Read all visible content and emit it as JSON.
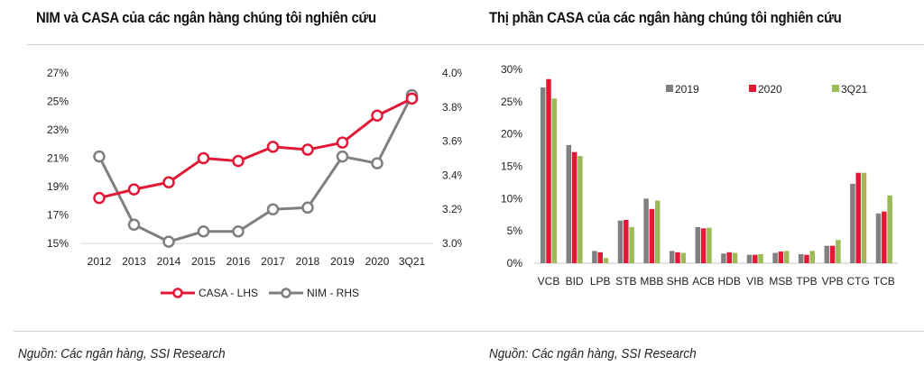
{
  "left": {
    "title": "NIM và CASA của các ngân hàng chúng tôi nghiên cứu",
    "source": "Nguồn: Các ngân hàng, SSI Research"
  },
  "right": {
    "title": "Thị phần CASA của các ngân hàng chúng tôi nghiên cứu",
    "source": "Nguồn: Các ngân hàng, SSI Research"
  },
  "chart_data": [
    {
      "type": "line",
      "title": "NIM và CASA của các ngân hàng chúng tôi nghiên cứu",
      "x": [
        "2012",
        "2013",
        "2014",
        "2015",
        "2016",
        "2017",
        "2018",
        "2019",
        "2020",
        "3Q21"
      ],
      "series": [
        {
          "name": "CASA - LHS",
          "axis": "left",
          "color": "#e31837",
          "values": [
            18.2,
            18.8,
            19.3,
            21.0,
            20.8,
            21.8,
            21.6,
            22.1,
            24.0,
            25.2
          ]
        },
        {
          "name": "NIM - RHS",
          "axis": "right",
          "color": "#7f7f7f",
          "values": [
            3.51,
            3.11,
            3.01,
            3.07,
            3.07,
            3.2,
            3.21,
            3.51,
            3.47,
            3.87
          ]
        }
      ],
      "y_left": {
        "ticks": [
          "15%",
          "17%",
          "19%",
          "21%",
          "23%",
          "25%",
          "27%"
        ],
        "range": [
          15,
          27
        ]
      },
      "y_right": {
        "ticks": [
          "3.0%",
          "3.2%",
          "3.4%",
          "3.6%",
          "3.8%",
          "4.0%"
        ],
        "range": [
          3.0,
          4.0
        ]
      },
      "legend": [
        "CASA - LHS",
        "NIM - RHS"
      ],
      "legend_position": "bottom",
      "grid": false
    },
    {
      "type": "bar",
      "title": "Thị phần CASA của các ngân hàng chúng tôi nghiên cứu",
      "categories": [
        "VCB",
        "BID",
        "LPB",
        "STB",
        "MBB",
        "SHB",
        "ACB",
        "HDB",
        "VIB",
        "MSB",
        "TPB",
        "VPB",
        "CTG",
        "TCB"
      ],
      "series": [
        {
          "name": "2019",
          "color": "#808080",
          "values": [
            27.2,
            18.3,
            1.9,
            6.6,
            10.0,
            1.9,
            5.6,
            1.5,
            1.3,
            1.6,
            1.4,
            2.7,
            12.3,
            7.7
          ]
        },
        {
          "name": "2020",
          "color": "#e31837",
          "values": [
            28.5,
            17.2,
            1.7,
            6.7,
            8.4,
            1.7,
            5.4,
            1.7,
            1.3,
            1.8,
            1.3,
            2.7,
            14.0,
            8.0
          ]
        },
        {
          "name": "3Q21",
          "color": "#9bbb59",
          "values": [
            25.5,
            16.6,
            0.8,
            5.6,
            9.7,
            1.6,
            5.5,
            1.6,
            1.4,
            1.9,
            1.9,
            3.6,
            14.0,
            10.5
          ]
        }
      ],
      "y": {
        "ticks": [
          "0%",
          "5%",
          "10%",
          "15%",
          "20%",
          "25%",
          "30%"
        ],
        "range": [
          0,
          30
        ]
      },
      "legend_position": "top-right",
      "grid": false
    }
  ]
}
